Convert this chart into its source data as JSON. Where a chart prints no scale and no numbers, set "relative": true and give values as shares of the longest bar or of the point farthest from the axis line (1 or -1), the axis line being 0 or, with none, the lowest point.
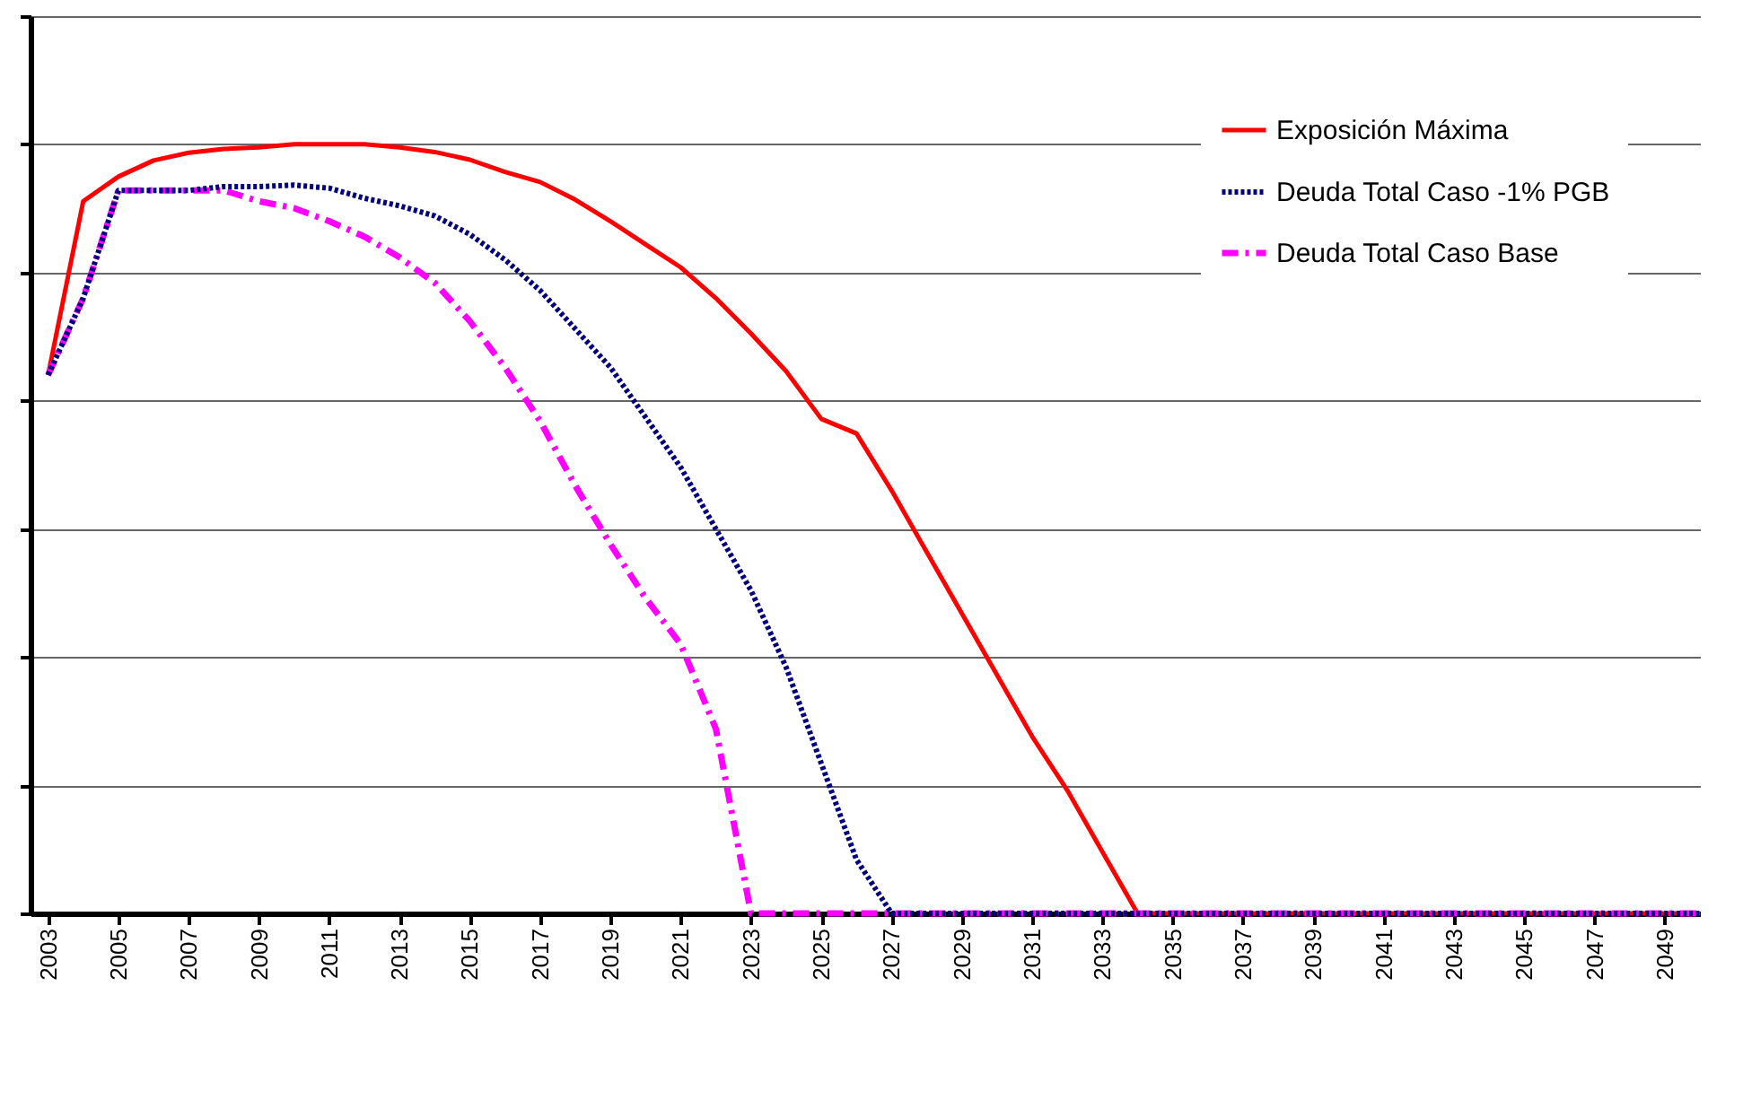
{
  "chart_data": {
    "type": "line",
    "relative": true,
    "grid": "y",
    "legend": "top right",
    "marker": "none",
    "x": [
      2003,
      2004,
      2005,
      2006,
      2007,
      2008,
      2009,
      2010,
      2011,
      2012,
      2013,
      2014,
      2015,
      2016,
      2017,
      2018,
      2019,
      2020,
      2021,
      2022,
      2023,
      2024,
      2025,
      2026,
      2027,
      2028,
      2029,
      2030,
      2031,
      2032,
      2033,
      2034,
      2035,
      2036,
      2037,
      2038,
      2039,
      2040,
      2041,
      2042,
      2043,
      2044,
      2045,
      2046,
      2047,
      2048,
      2049,
      2050
    ],
    "xlim": [
      2002.5,
      2050
    ],
    "xticks": [
      2003,
      2005,
      2007,
      2009,
      2011,
      2013,
      2015,
      2017,
      2019,
      2021,
      2023,
      2025,
      2027,
      2029,
      2031,
      2033,
      2035,
      2037,
      2039,
      2041,
      2043,
      2045,
      2047,
      2049
    ],
    "series": [
      {
        "name": "Exposición Máxima",
        "color": "#ff0000",
        "line_style": "solid",
        "values": [
          0.7,
          0.926,
          0.958,
          0.979,
          0.989,
          0.994,
          0.996,
          1,
          1,
          1,
          0.996,
          0.99,
          0.98,
          0.964,
          0.951,
          0.928,
          0.9,
          0.87,
          0.84,
          0.8,
          0.754,
          0.705,
          0.643,
          0.624,
          0.55,
          0.47,
          0.39,
          0.31,
          0.23,
          0.16,
          0.08,
          0,
          0,
          0,
          0,
          0,
          0,
          0,
          0,
          0,
          0,
          0,
          0,
          0,
          0,
          0,
          0,
          0
        ]
      },
      {
        "name": "Deuda Total Caso -1% PGB",
        "color": "#000080",
        "line_style": "dotted",
        "values": [
          0.7,
          0.8,
          0.94,
          0.94,
          0.94,
          0.945,
          0.945,
          0.947,
          0.943,
          0.93,
          0.92,
          0.907,
          0.883,
          0.85,
          0.81,
          0.76,
          0.71,
          0.645,
          0.58,
          0.5,
          0.42,
          0.32,
          0.195,
          0.07,
          0,
          0,
          0,
          0,
          0,
          0,
          0,
          0,
          0,
          0,
          0,
          0,
          0,
          0,
          0,
          0,
          0,
          0,
          0,
          0,
          0,
          0,
          0,
          0
        ]
      },
      {
        "name": "Deuda Total Caso Base",
        "color": "#ff00ff",
        "line_style": "dashed",
        "values": [
          0.7,
          0.8,
          0.94,
          0.94,
          0.94,
          0.94,
          0.926,
          0.917,
          0.9,
          0.88,
          0.853,
          0.82,
          0.77,
          0.71,
          0.64,
          0.556,
          0.48,
          0.41,
          0.35,
          0.24,
          0,
          0,
          0,
          0,
          0,
          0,
          0,
          0,
          0,
          0,
          0,
          0,
          0,
          0,
          0,
          0,
          0,
          0,
          0,
          0,
          0,
          0,
          0,
          0,
          0,
          0,
          0,
          0
        ]
      }
    ]
  }
}
